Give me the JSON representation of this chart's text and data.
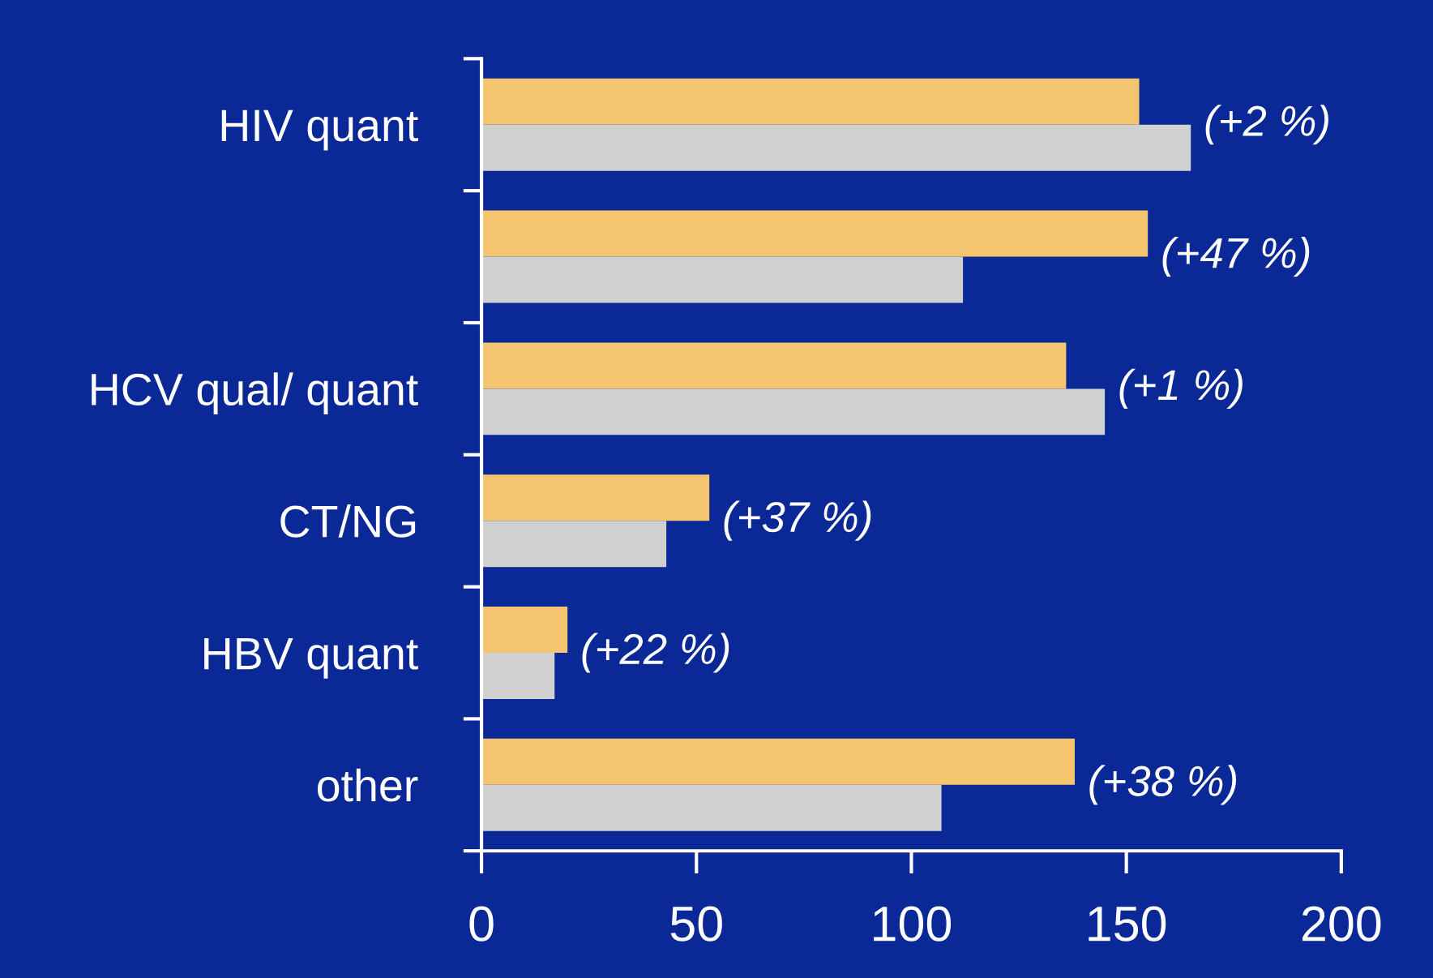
{
  "chart_data": {
    "type": "bar",
    "orientation": "horizontal",
    "categories": [
      "HIV quant",
      null,
      "HCV qual/ quant",
      "CT/NG",
      "HBV quant",
      "other"
    ],
    "series": [
      {
        "color": "#f5c46e",
        "values": [
          153,
          155,
          136,
          53,
          20,
          138
        ]
      },
      {
        "color": "#d0d0d0",
        "values": [
          165,
          112,
          145,
          43,
          17,
          107
        ]
      }
    ],
    "xlim": [
      0,
      200
    ],
    "xticks": [
      0,
      50,
      100,
      150,
      200
    ],
    "grid": false,
    "annotations": [
      "(+2 %)",
      "(+47 %)",
      "(+1 %)",
      "(+37 %)",
      "(+22 %)",
      "(+38 %)"
    ]
  }
}
